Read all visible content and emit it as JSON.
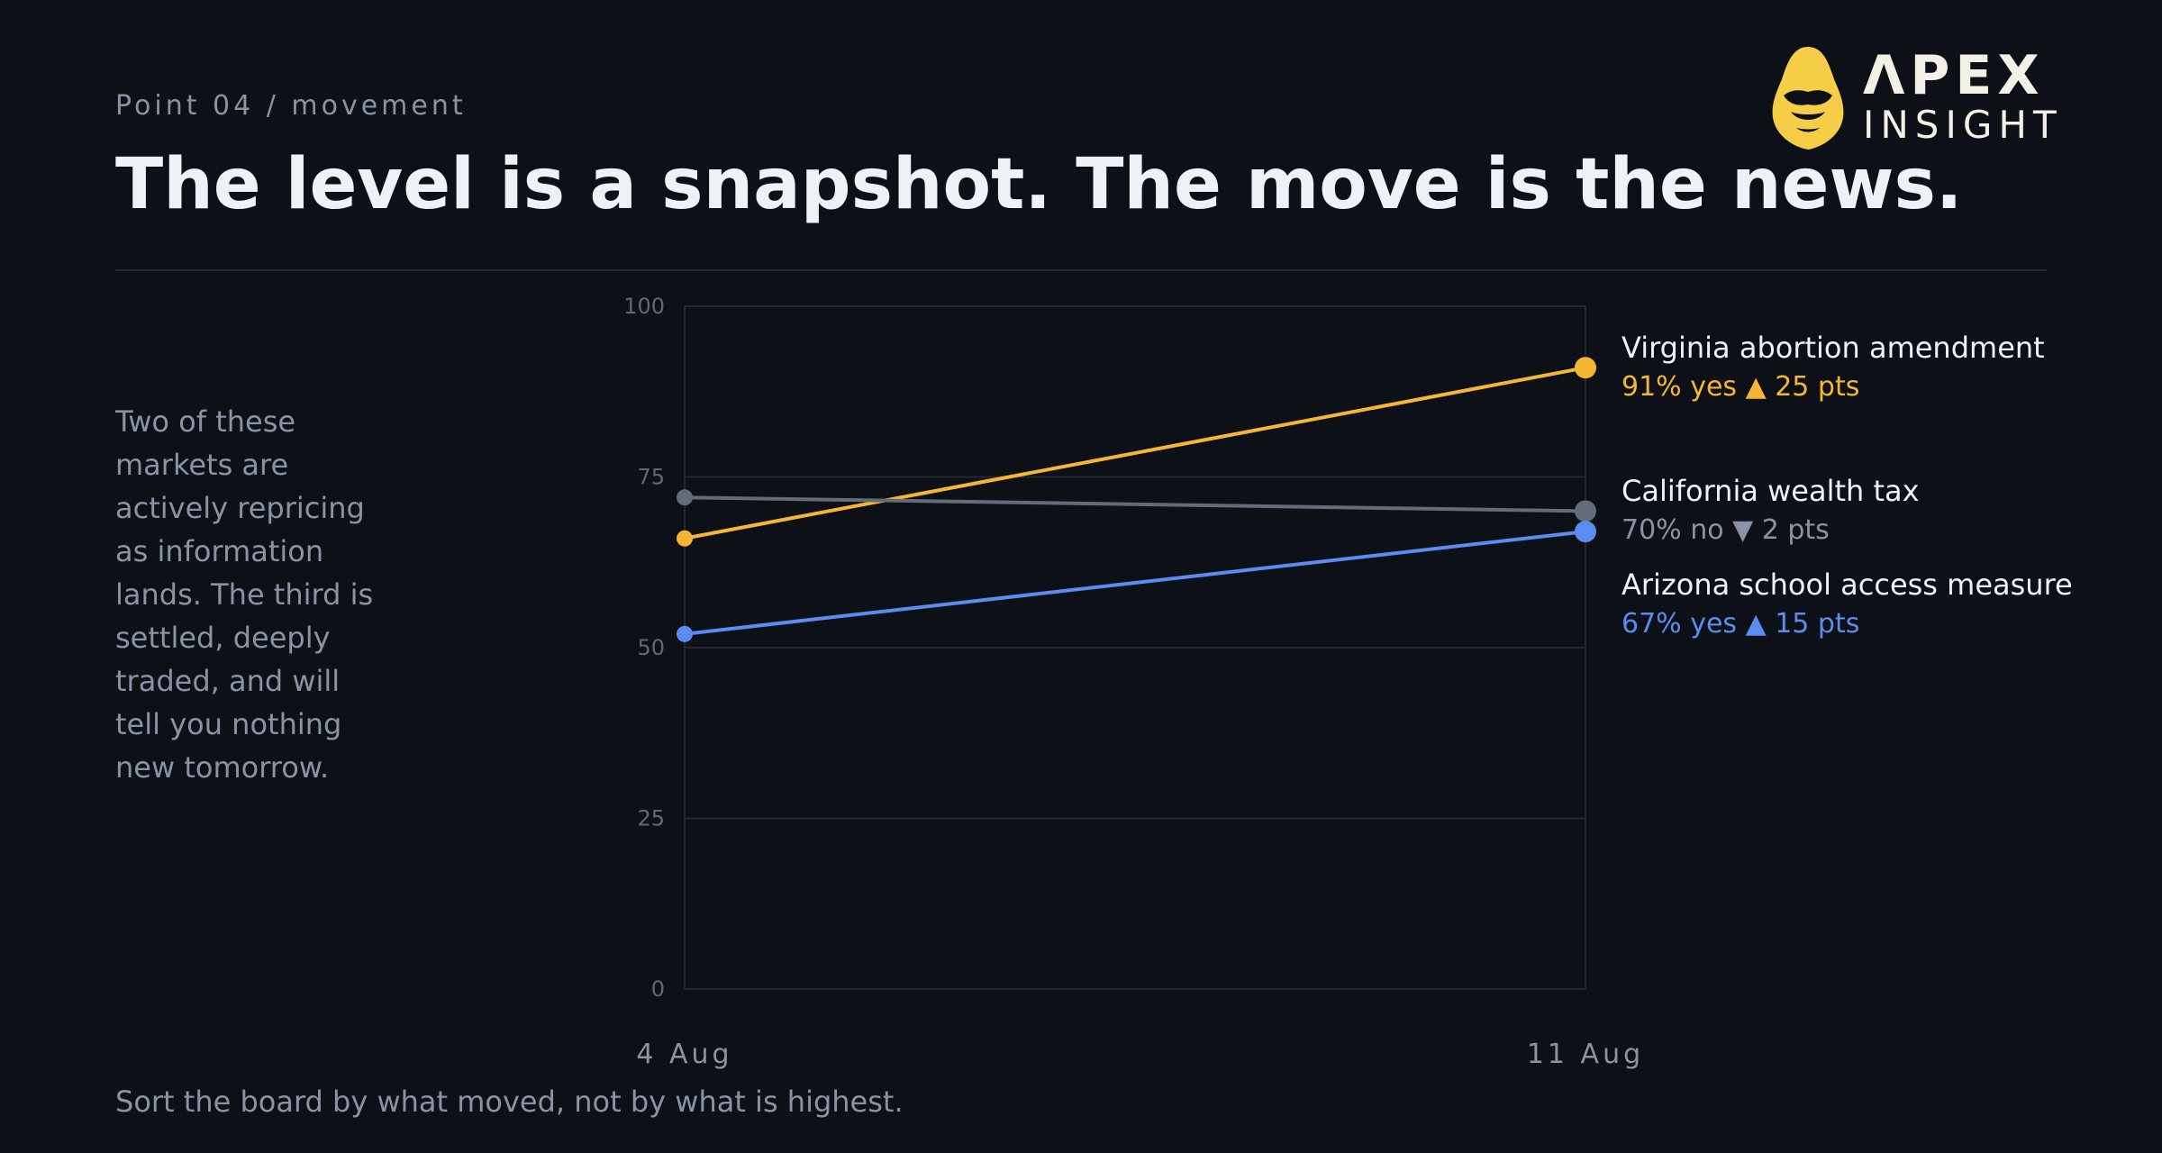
{
  "kicker": "Point 04 / movement",
  "headline": "The level is a snapshot. The move is the news.",
  "logo": {
    "word": "ΛPEX",
    "sub": "INSIGHT",
    "color": "#f6cd47",
    "icon": "hooded-figure-icon"
  },
  "body_text": "Two of these markets are actively repricing as information lands. The third is settled, deeply traded, and will tell you nothing new tomorrow.",
  "footer": "Sort the board by what moved, not by what is highest.",
  "colors": {
    "background": "#0d1017",
    "grid": "#232833",
    "axis_text": "#5f6878",
    "muted_text": "#8a93a3"
  },
  "chart_data": {
    "type": "line",
    "x": [
      "4 Aug",
      "11 Aug"
    ],
    "ylim": [
      0,
      100
    ],
    "yticks": [
      0,
      25,
      50,
      75,
      100
    ],
    "grid": true,
    "xlabel": "",
    "ylabel": "",
    "series": [
      {
        "name": "Virginia abortion amendment",
        "values": [
          66,
          91
        ],
        "annotation": "91% yes ▲ 25 pts",
        "color": "#f5b731"
      },
      {
        "name": "California wealth tax",
        "values": [
          72,
          70
        ],
        "annotation": "70% no ▼ 2 pts",
        "color": "#636b78"
      },
      {
        "name": "Arizona school access measure",
        "values": [
          52,
          67
        ],
        "annotation": "67% yes ▲ 15 pts",
        "color": "#5b8cf0"
      }
    ]
  }
}
